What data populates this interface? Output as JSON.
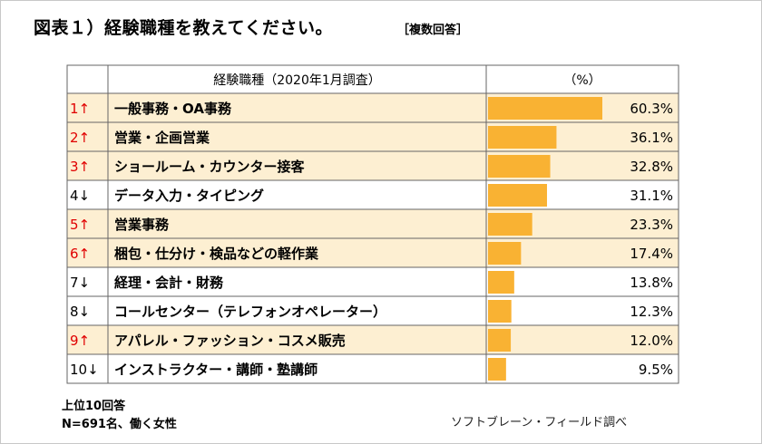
{
  "title": "図表１）経験職種を教えてください。",
  "title_note": "［複数回答］",
  "notes": [
    "上位10回答",
    "N=691名、働く女性"
  ],
  "source": "ソフトブレーン・フィールド調べ",
  "colors": {
    "highlight_row": "#fdefd2",
    "bar": "#f9b233",
    "header_bg": "#ffffff",
    "grid": "#666666",
    "up_rank_text": "#e00000"
  },
  "chart_data": {
    "type": "bar",
    "title": "経験職種（2020年1月調査）",
    "column_headers": [
      "経験職種（2020年1月調査）",
      "（%）"
    ],
    "xlim": [
      0,
      60.3
    ],
    "rows": [
      {
        "rank": "1",
        "arrow": "↑",
        "label": "一般事務・OA事務",
        "value": 60.3,
        "display": "60.3%",
        "highlight": true
      },
      {
        "rank": "2",
        "arrow": "↑",
        "label": "営業・企画営業",
        "value": 36.1,
        "display": "36.1%",
        "highlight": true
      },
      {
        "rank": "3",
        "arrow": "↑",
        "label": "ショールーム・カウンター接客",
        "value": 32.8,
        "display": "32.8%",
        "highlight": true
      },
      {
        "rank": "4",
        "arrow": "↓",
        "label": "データ入力・タイピング",
        "value": 31.1,
        "display": "31.1%",
        "highlight": false
      },
      {
        "rank": "5",
        "arrow": "↑",
        "label": "営業事務",
        "value": 23.3,
        "display": "23.3%",
        "highlight": true
      },
      {
        "rank": "6",
        "arrow": "↑",
        "label": "梱包・仕分け・検品などの軽作業",
        "value": 17.4,
        "display": "17.4%",
        "highlight": true
      },
      {
        "rank": "7",
        "arrow": "↓",
        "label": "経理・会計・財務",
        "value": 13.8,
        "display": "13.8%",
        "highlight": false
      },
      {
        "rank": "8",
        "arrow": "↓",
        "label": "コールセンター（テレフォンオペレーター）",
        "value": 12.3,
        "display": "12.3%",
        "highlight": false
      },
      {
        "rank": "9",
        "arrow": "↑",
        "label": "アパレル・ファッション・コスメ販売",
        "value": 12.0,
        "display": "12.0%",
        "highlight": true
      },
      {
        "rank": "10",
        "arrow": "↓",
        "label": "インストラクター・講師・塾講師",
        "value": 9.5,
        "display": "9.5%",
        "highlight": false
      }
    ]
  }
}
